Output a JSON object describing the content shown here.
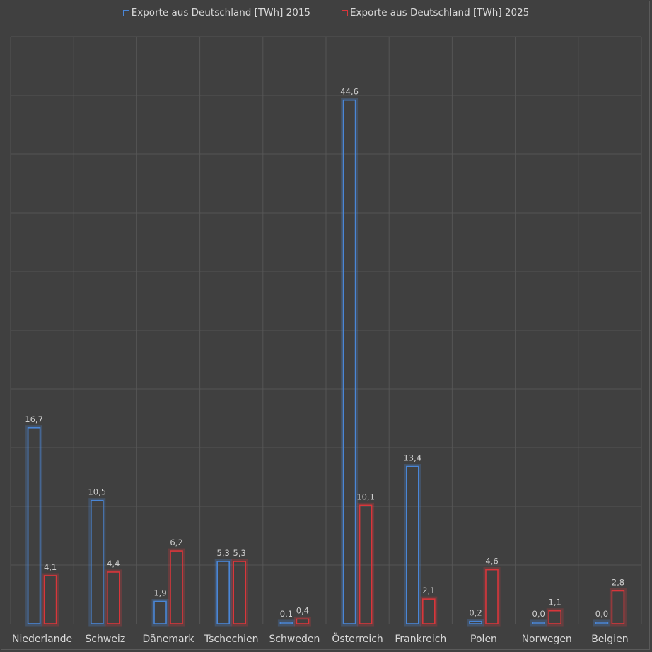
{
  "chart_data": {
    "type": "bar",
    "categories": [
      "Niederlande",
      "Schweiz",
      "Dänemark",
      "Tschechien",
      "Schweden",
      "Österreich",
      "Frankreich",
      "Polen",
      "Norwegen",
      "Belgien"
    ],
    "series": [
      {
        "name": "Exporte aus Deutschland [TWh] 2015",
        "color": "#4a86d6",
        "values": [
          16.7,
          10.5,
          1.9,
          5.3,
          0.1,
          44.6,
          13.4,
          0.2,
          0.0,
          0.0
        ],
        "labels": [
          "16,7",
          "10,5",
          "1,9",
          "5,3",
          "0,1",
          "44,6",
          "13,4",
          "0,2",
          "0,0",
          "0,0"
        ]
      },
      {
        "name": "Exporte aus Deutschland [TWh] 2025",
        "color": "#d9363b",
        "values": [
          4.1,
          4.4,
          6.2,
          5.3,
          0.4,
          10.1,
          2.1,
          4.6,
          1.1,
          2.8
        ],
        "labels": [
          "4,1",
          "4,4",
          "6,2",
          "5,3",
          "0,4",
          "10,1",
          "2,1",
          "4,6",
          "1,1",
          "2,8"
        ]
      }
    ],
    "ylim": [
      0,
      50
    ],
    "grid": true,
    "legend_position": "top-center",
    "title": "",
    "xlabel": "",
    "ylabel": ""
  }
}
